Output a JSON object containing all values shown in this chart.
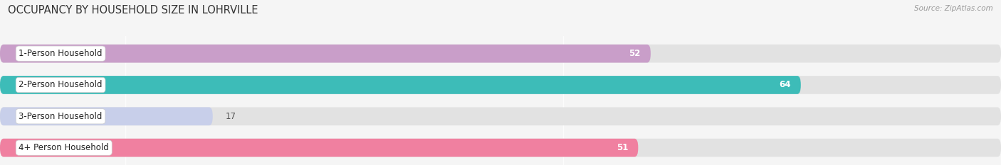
{
  "title": "OCCUPANCY BY HOUSEHOLD SIZE IN LOHRVILLE",
  "source": "Source: ZipAtlas.com",
  "categories": [
    "1-Person Household",
    "2-Person Household",
    "3-Person Household",
    "4+ Person Household"
  ],
  "values": [
    52,
    64,
    17,
    51
  ],
  "colors": [
    "#c99ec9",
    "#3dbcb8",
    "#c8cfea",
    "#f080a0"
  ],
  "bar_bg_color": "#e8e8e8",
  "xlim": [
    0,
    80
  ],
  "xticks": [
    10,
    45,
    80
  ],
  "bar_height": 0.58,
  "label_fontsize": 8.5,
  "title_fontsize": 10.5,
  "value_color_threshold": 20,
  "fig_bg": "#f5f5f5",
  "bar_bg": "#e2e2e2"
}
